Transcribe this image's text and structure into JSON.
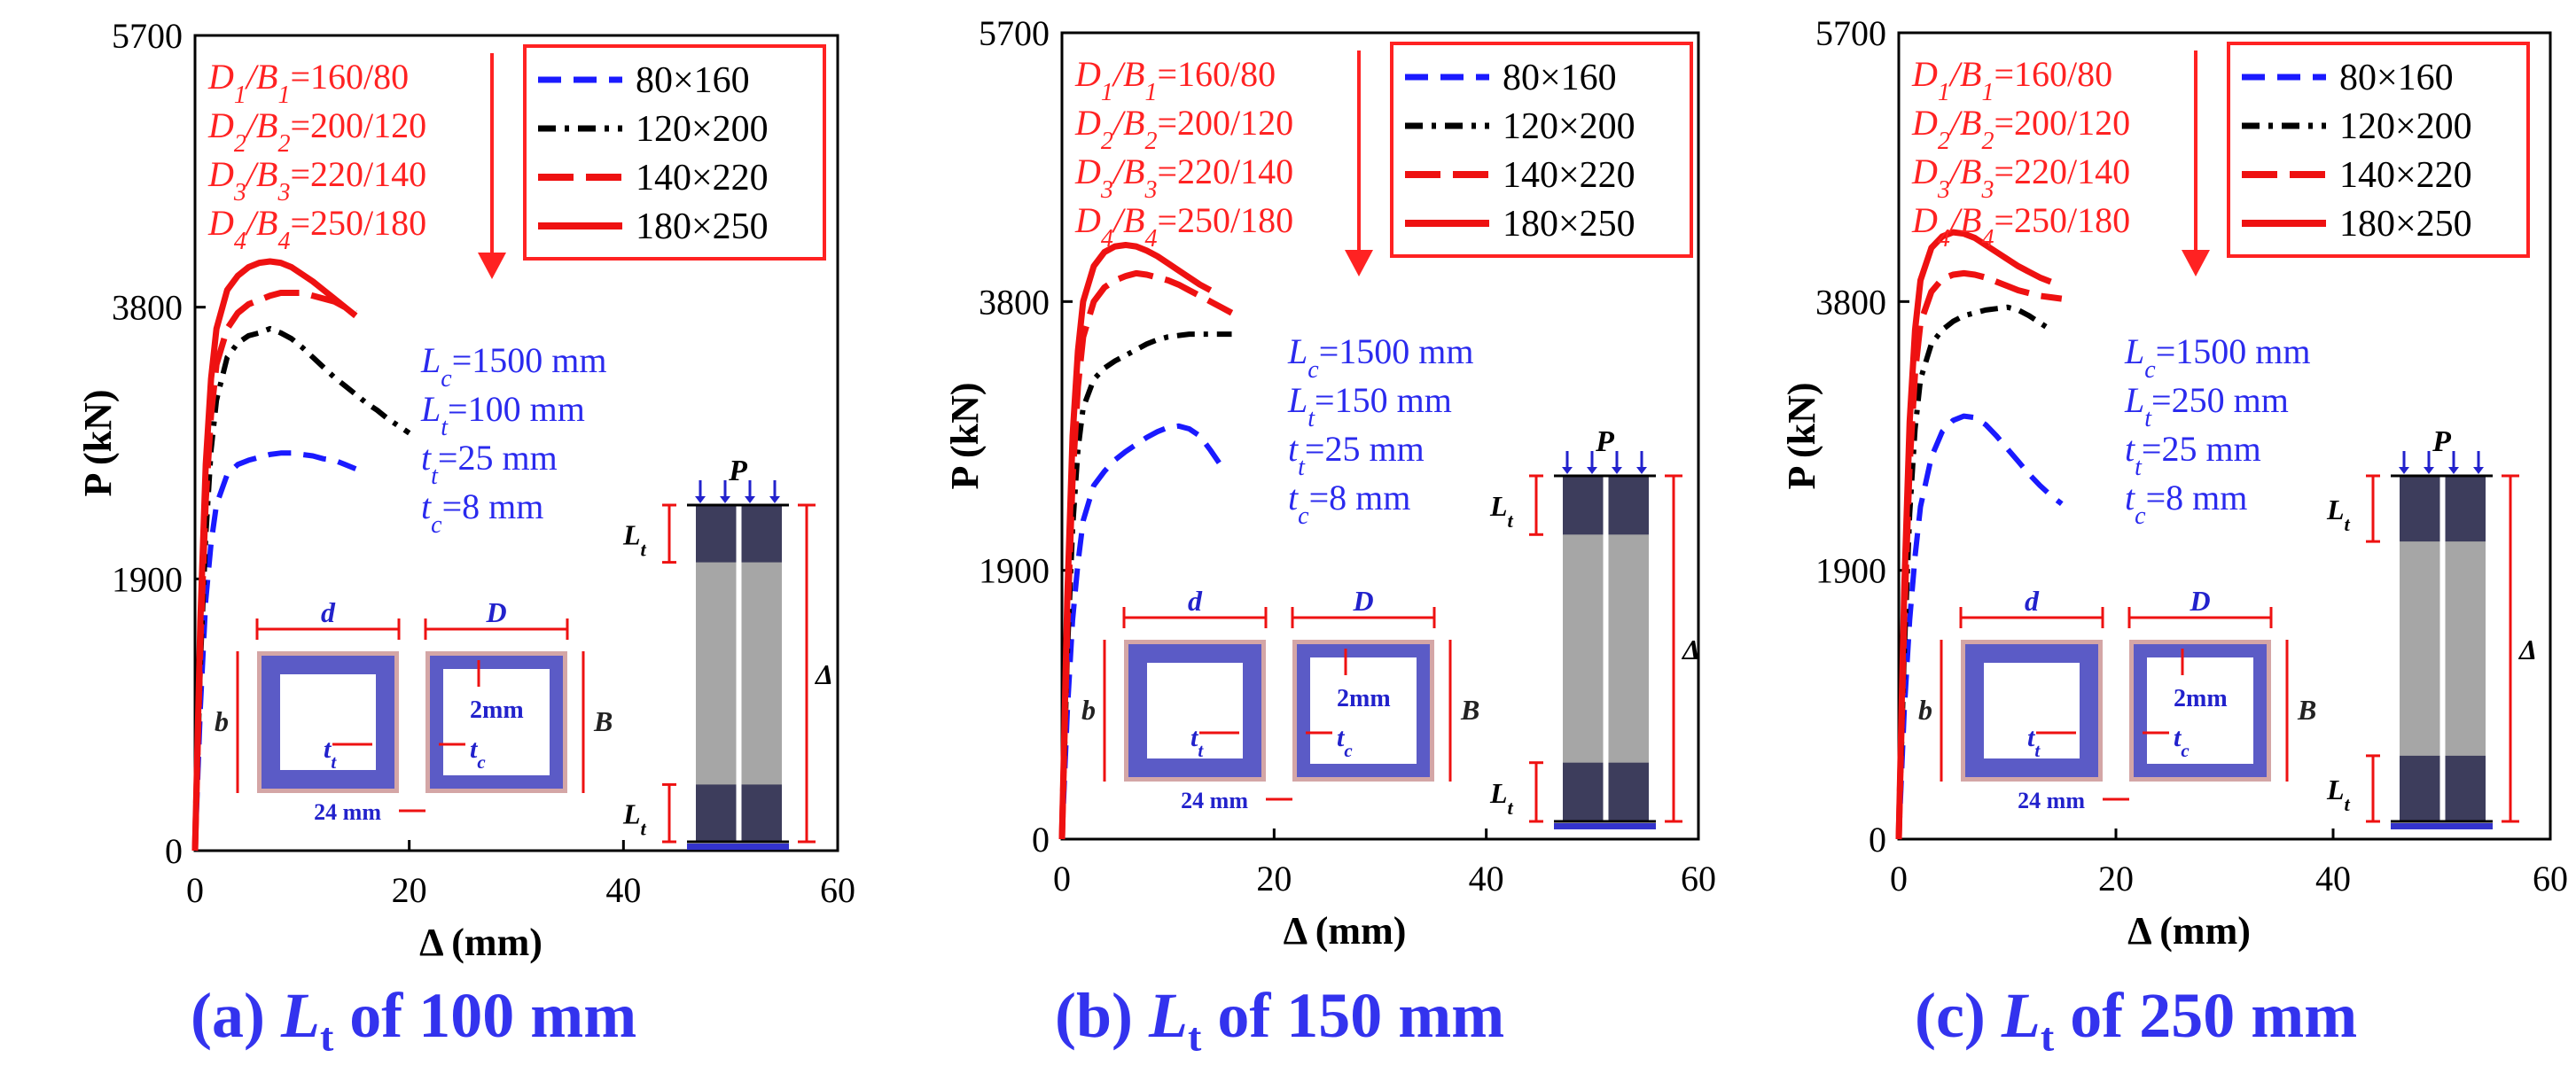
{
  "chart_data": [
    {
      "type": "line",
      "title": "(a) Lt of 100 mm",
      "caption": {
        "prefix": "(a) ",
        "sym": "L",
        "sub": "t",
        "suffix": " of 100 mm"
      },
      "xlabel": "Δ (mm)",
      "ylabel": "P (kN)",
      "xlim": [
        0,
        60
      ],
      "ylim": [
        0,
        5700
      ],
      "xticks": [
        0,
        20,
        40,
        60
      ],
      "yticks": [
        0,
        1900,
        3800,
        5700
      ],
      "params": [
        "Lc=1500 mm",
        "Lt=100 mm",
        "tt=25 mm",
        "tc=8 mm"
      ],
      "series": [
        {
          "name": "80×160",
          "style": "blue-dashed",
          "x": [
            0,
            0.5,
            1,
            1.5,
            2,
            3,
            4,
            5,
            6,
            7,
            8,
            9,
            10,
            11,
            12,
            13,
            14,
            15
          ],
          "y": [
            0,
            1000,
            1750,
            2150,
            2420,
            2630,
            2700,
            2730,
            2750,
            2770,
            2780,
            2780,
            2770,
            2760,
            2740,
            2730,
            2700,
            2670
          ]
        },
        {
          "name": "120×200",
          "style": "black-dashdot",
          "x": [
            0,
            0.5,
            1,
            1.5,
            2,
            3,
            4,
            5,
            6,
            7,
            8,
            9,
            10,
            11,
            12,
            13,
            14,
            15,
            16,
            17,
            18,
            19,
            20
          ],
          "y": [
            0,
            1300,
            2200,
            2800,
            3150,
            3450,
            3550,
            3600,
            3620,
            3650,
            3620,
            3580,
            3520,
            3450,
            3380,
            3310,
            3250,
            3190,
            3130,
            3080,
            3020,
            2970,
            2920
          ]
        },
        {
          "name": "140×220",
          "style": "red-longdash",
          "x": [
            0,
            0.5,
            1,
            1.5,
            2,
            3,
            4,
            5,
            6,
            7,
            8,
            9,
            10,
            11,
            12,
            13,
            14,
            15
          ],
          "y": [
            0,
            1450,
            2450,
            3050,
            3400,
            3650,
            3760,
            3820,
            3850,
            3880,
            3900,
            3900,
            3900,
            3880,
            3860,
            3840,
            3800,
            3760
          ]
        },
        {
          "name": "180×250",
          "style": "red-solid",
          "x": [
            0,
            0.5,
            1,
            1.5,
            2,
            3,
            4,
            5,
            6,
            7,
            8,
            9,
            10,
            11,
            12,
            13,
            14,
            15
          ],
          "y": [
            0,
            1600,
            2700,
            3300,
            3650,
            3920,
            4020,
            4080,
            4110,
            4120,
            4110,
            4080,
            4030,
            3980,
            3920,
            3860,
            3800,
            3740
          ]
        }
      ]
    },
    {
      "type": "line",
      "title": "(b) Lt of 150 mm",
      "caption": {
        "prefix": "(b) ",
        "sym": "L",
        "sub": "t",
        "suffix": " of 150 mm"
      },
      "xlabel": "Δ (mm)",
      "ylabel": "P (kN)",
      "xlim": [
        0,
        60
      ],
      "ylim": [
        0,
        5700
      ],
      "xticks": [
        0,
        20,
        40,
        60
      ],
      "yticks": [
        0,
        1900,
        3800,
        5700
      ],
      "params": [
        "Lc=1500 mm",
        "Lt=150 mm",
        "tt=25 mm",
        "tc=8 mm"
      ],
      "series": [
        {
          "name": "80×160",
          "style": "blue-dashed",
          "x": [
            0,
            0.5,
            1,
            1.5,
            2,
            3,
            4,
            5,
            6,
            7,
            8,
            9,
            10,
            11,
            12,
            13,
            14,
            15
          ],
          "y": [
            0,
            900,
            1550,
            1950,
            2250,
            2500,
            2600,
            2680,
            2740,
            2790,
            2840,
            2880,
            2910,
            2920,
            2900,
            2850,
            2750,
            2640
          ]
        },
        {
          "name": "120×200",
          "style": "black-dashdot",
          "x": [
            0,
            0.5,
            1,
            1.5,
            2,
            3,
            4,
            5,
            6,
            7,
            8,
            9,
            10,
            11,
            12,
            13,
            14,
            15,
            16
          ],
          "y": [
            0,
            1300,
            2200,
            2750,
            3050,
            3250,
            3330,
            3380,
            3420,
            3460,
            3500,
            3530,
            3550,
            3560,
            3570,
            3570,
            3570,
            3570,
            3570
          ]
        },
        {
          "name": "140×220",
          "style": "red-longdash",
          "x": [
            0,
            0.5,
            1,
            1.5,
            2,
            3,
            4,
            5,
            6,
            7,
            8,
            9,
            10,
            11,
            12,
            13,
            14,
            15,
            16
          ],
          "y": [
            0,
            1500,
            2550,
            3200,
            3550,
            3800,
            3900,
            3950,
            3980,
            4000,
            3990,
            3970,
            3950,
            3920,
            3880,
            3840,
            3800,
            3760,
            3720
          ]
        },
        {
          "name": "180×250",
          "style": "red-solid",
          "x": [
            0,
            0.5,
            1,
            1.5,
            2,
            3,
            4,
            5,
            6,
            7,
            8,
            9,
            10,
            11,
            12,
            13,
            14
          ],
          "y": [
            0,
            1700,
            2850,
            3450,
            3800,
            4050,
            4150,
            4190,
            4200,
            4190,
            4160,
            4120,
            4070,
            4020,
            3970,
            3920,
            3880
          ]
        }
      ]
    },
    {
      "type": "line",
      "title": "(c) Lt of 250 mm",
      "caption": {
        "prefix": "(c) ",
        "sym": "L",
        "sub": "t",
        "suffix": " of 250 mm"
      },
      "xlabel": "Δ (mm)",
      "ylabel": "P (kN)",
      "xlim": [
        0,
        60
      ],
      "ylim": [
        0,
        5700
      ],
      "xticks": [
        0,
        20,
        40,
        60
      ],
      "yticks": [
        0,
        1900,
        3800,
        5700
      ],
      "params": [
        "Lc=1500 mm",
        "Lt=250 mm",
        "tt=25 mm",
        "tc=8 mm"
      ],
      "series": [
        {
          "name": "80×160",
          "style": "blue-dashed",
          "x": [
            0,
            0.5,
            1,
            1.5,
            2,
            3,
            4,
            5,
            6,
            7,
            8,
            9,
            10,
            11,
            12,
            13,
            14,
            15
          ],
          "y": [
            0,
            900,
            1550,
            2000,
            2350,
            2700,
            2880,
            2960,
            2990,
            2980,
            2930,
            2850,
            2760,
            2670,
            2580,
            2500,
            2430,
            2370
          ]
        },
        {
          "name": "120×200",
          "style": "black-dashdot",
          "x": [
            0,
            0.5,
            1,
            1.5,
            2,
            3,
            4,
            5,
            6,
            7,
            8,
            9,
            10,
            11,
            12,
            13,
            14
          ],
          "y": [
            0,
            1300,
            2300,
            2900,
            3250,
            3500,
            3600,
            3660,
            3700,
            3720,
            3740,
            3750,
            3760,
            3740,
            3700,
            3650,
            3600
          ]
        },
        {
          "name": "140×220",
          "style": "red-longdash",
          "x": [
            0,
            0.5,
            1,
            1.5,
            2,
            3,
            4,
            5,
            6,
            7,
            8,
            9,
            10,
            11,
            12,
            13,
            14,
            15
          ],
          "y": [
            0,
            1550,
            2650,
            3300,
            3650,
            3870,
            3960,
            3990,
            4000,
            3990,
            3970,
            3940,
            3910,
            3880,
            3860,
            3840,
            3830,
            3820
          ]
        },
        {
          "name": "180×250",
          "style": "red-solid",
          "x": [
            0,
            0.5,
            1,
            1.5,
            2,
            3,
            4,
            5,
            6,
            7,
            8,
            9,
            10,
            11,
            12,
            13,
            14
          ],
          "y": [
            0,
            1750,
            2950,
            3600,
            3950,
            4180,
            4260,
            4290,
            4280,
            4250,
            4200,
            4150,
            4100,
            4050,
            4010,
            3970,
            3940
          ]
        }
      ]
    }
  ],
  "shared_annotations": {
    "dimension_labels": [
      "D1/B1=160/80",
      "D2/B2=200/120",
      "D3/B3=220/140",
      "D4/B4=250/180"
    ],
    "legend": [
      "80×160",
      "120×200",
      "140×220",
      "180×250"
    ],
    "inset_labels": {
      "d": "d",
      "D": "D",
      "b": "b",
      "B": "B",
      "tt": "tt",
      "tc": "tc",
      "inner": "2mm",
      "gap": "24 mm",
      "P": "P",
      "Lt": "Lt",
      "delta": "Δ"
    }
  },
  "colors": {
    "blue": "#1a1aff",
    "black": "#000000",
    "red": "#ee1111",
    "annotation_red": "#ff2222",
    "param_blue": "#2a2aee",
    "caption_blue": "#3333ee",
    "tube_fill": "#5b5bc6",
    "tube_border": "#d4a6a6",
    "dark_segment": "#3d3d5c",
    "core_gray": "#a6a6a6"
  }
}
